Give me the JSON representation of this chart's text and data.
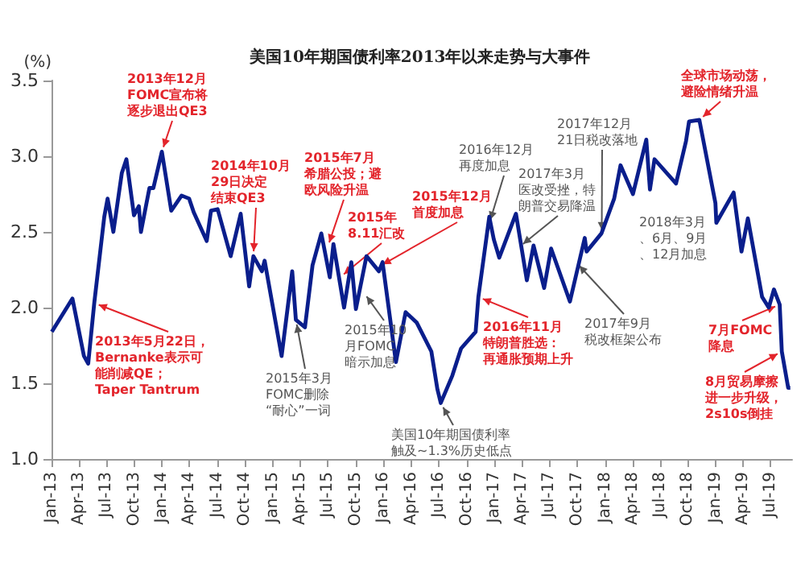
{
  "chart_data": {
    "type": "line",
    "title": "美国10年期国债利率2013年以来走势与大事件",
    "ylabel": "(%)",
    "x": [
      "2013-01-02",
      "2013-03-11",
      "2013-04-18",
      "2013-05-02",
      "2013-05-22",
      "2013-06-24",
      "2013-07-05",
      "2013-07-24",
      "2013-08-21",
      "2013-09-05",
      "2013-09-30",
      "2013-10-16",
      "2013-10-23",
      "2013-11-20",
      "2013-12-03",
      "2013-12-31",
      "2014-01-31",
      "2014-03-06",
      "2014-03-31",
      "2014-04-15",
      "2014-05-28",
      "2014-06-11",
      "2014-07-03",
      "2014-08-15",
      "2014-09-17",
      "2014-10-15",
      "2014-10-29",
      "2014-11-26",
      "2014-12-05",
      "2015-01-30",
      "2015-03-06",
      "2015-03-18",
      "2015-04-17",
      "2015-05-12",
      "2015-06-10",
      "2015-07-08",
      "2015-07-20",
      "2015-08-24",
      "2015-09-17",
      "2015-10-02",
      "2015-11-06",
      "2015-12-17",
      "2015-12-29",
      "2016-02-11",
      "2016-03-14",
      "2016-04-20",
      "2016-06-07",
      "2016-06-27",
      "2016-07-08",
      "2016-08-15",
      "2016-09-13",
      "2016-10-31",
      "2016-11-09",
      "2016-12-15",
      "2016-12-30",
      "2017-01-17",
      "2017-03-13",
      "2017-04-18",
      "2017-05-10",
      "2017-06-14",
      "2017-07-07",
      "2017-09-07",
      "2017-10-26",
      "2017-11-01",
      "2017-12-20",
      "2018-01-31",
      "2018-02-21",
      "2018-04-03",
      "2018-05-17",
      "2018-05-29",
      "2018-06-13",
      "2018-08-23",
      "2018-09-25",
      "2018-10-05",
      "2018-11-08",
      "2018-12-31",
      "2019-01-03",
      "2019-03-01",
      "2019-03-27",
      "2019-04-17",
      "2019-06-03",
      "2019-06-25",
      "2019-07-12",
      "2019-07-31",
      "2019-08-07",
      "2019-08-28",
      "2019-09-04"
    ],
    "series": [
      {
        "color": "#0a1e8c",
        "values": [
          1.84,
          2.06,
          1.68,
          1.63,
          2.03,
          2.6,
          2.72,
          2.5,
          2.89,
          2.98,
          2.61,
          2.67,
          2.5,
          2.79,
          2.79,
          3.03,
          2.64,
          2.74,
          2.72,
          2.63,
          2.44,
          2.64,
          2.65,
          2.34,
          2.62,
          2.14,
          2.34,
          2.24,
          2.31,
          1.68,
          2.24,
          1.92,
          1.87,
          2.28,
          2.49,
          2.2,
          2.42,
          2.0,
          2.3,
          1.99,
          2.34,
          2.24,
          2.3,
          1.64,
          1.97,
          1.9,
          1.71,
          1.46,
          1.37,
          1.55,
          1.73,
          1.84,
          2.07,
          2.6,
          2.45,
          2.33,
          2.62,
          2.18,
          2.41,
          2.13,
          2.39,
          2.04,
          2.46,
          2.37,
          2.49,
          2.72,
          2.94,
          2.75,
          3.11,
          2.78,
          2.98,
          2.82,
          3.1,
          3.23,
          3.24,
          2.69,
          2.56,
          2.76,
          2.37,
          2.59,
          2.07,
          2.0,
          2.12,
          2.02,
          1.71,
          1.47,
          1.47
        ]
      }
    ],
    "xlim": [
      "2013-01-01",
      "2019-09-10"
    ],
    "xticks": [
      {
        "value": "2013-01",
        "label": "Jan-13"
      },
      {
        "value": "2013-04",
        "label": "Apr-13"
      },
      {
        "value": "2013-07",
        "label": "Jul-13"
      },
      {
        "value": "2013-10",
        "label": "Oct-13"
      },
      {
        "value": "2014-01",
        "label": "Jan-14"
      },
      {
        "value": "2014-04",
        "label": "Apr-14"
      },
      {
        "value": "2014-07",
        "label": "Jul-14"
      },
      {
        "value": "2014-10",
        "label": "Oct-14"
      },
      {
        "value": "2015-01",
        "label": "Jan-15"
      },
      {
        "value": "2015-04",
        "label": "Apr-15"
      },
      {
        "value": "2015-07",
        "label": "Jul-15"
      },
      {
        "value": "2015-10",
        "label": "Oct-15"
      },
      {
        "value": "2016-01",
        "label": "Jan-16"
      },
      {
        "value": "2016-04",
        "label": "Apr-16"
      },
      {
        "value": "2016-07",
        "label": "Jul-16"
      },
      {
        "value": "2016-10",
        "label": "Oct-16"
      },
      {
        "value": "2017-01",
        "label": "Jan-17"
      },
      {
        "value": "2017-04",
        "label": "Apr-17"
      },
      {
        "value": "2017-07",
        "label": "Jul-17"
      },
      {
        "value": "2017-10",
        "label": "Oct-17"
      },
      {
        "value": "2018-01",
        "label": "Jan-18"
      },
      {
        "value": "2018-04",
        "label": "Apr-18"
      },
      {
        "value": "2018-07",
        "label": "Jul-18"
      },
      {
        "value": "2018-10",
        "label": "Oct-18"
      },
      {
        "value": "2019-01",
        "label": "Jan-19"
      },
      {
        "value": "2019-04",
        "label": "Apr-19"
      },
      {
        "value": "2019-07",
        "label": "Jul-19"
      }
    ],
    "ylim": [
      1.0,
      3.5
    ],
    "yticks": [
      {
        "value": 1.0,
        "label": "1.0"
      },
      {
        "value": 1.5,
        "label": "1.5"
      },
      {
        "value": 2.0,
        "label": "2.0"
      },
      {
        "value": 2.5,
        "label": "2.5"
      },
      {
        "value": 3.0,
        "label": "3.0"
      },
      {
        "value": 3.5,
        "label": "3.5"
      }
    ],
    "grid": false,
    "marker": "none",
    "line_style": "solid",
    "annotations": [
      {
        "text": "2013年12月FOMC宣布将逐步退出QE3",
        "x": "2013-12-31",
        "y": 3.03
      },
      {
        "text": "2014年10月29日决定结束QE3",
        "x": "2014-10-29",
        "y": 2.34
      },
      {
        "text": "2015年7月希腊公投；避欧风险升温",
        "x": "2015-07-01",
        "y": 2.4
      },
      {
        "text": "2015年8.11汇改",
        "x": "2015-08-11",
        "y": 2.2
      },
      {
        "text": "2015年12月首度加息",
        "x": "2015-12-16",
        "y": 2.27
      },
      {
        "text": "2016年12月再度加息",
        "x": "2016-12-14",
        "y": 2.55
      },
      {
        "text": "2017年3月医改受挫，特朗普交易降温",
        "x": "2017-03-24",
        "y": 2.4
      },
      {
        "text": "2017年12月21日税改落地",
        "x": "2017-12-21",
        "y": 2.48
      },
      {
        "text": "全球市场动荡，避险情绪升温",
        "x": "2018-11-08",
        "y": 3.24
      },
      "2018年3月、6月、9月、12月加息",
      {
        "text": "2013年5月22日，Bernanke表示可能削减QE；Taper Tantrum",
        "x": "2013-05-22",
        "y": 2.03
      },
      {
        "text": "2015年3月FOMC删除“耐心”一词",
        "x": "2015-03-18",
        "y": 1.92
      },
      {
        "text": "2015年10月FOMC暗示加息",
        "x": "2015-10-28",
        "y": 2.1
      },
      {
        "text": "美国10年期国债利率触及~1.3%历史低点",
        "x": "2016-07-08",
        "y": 1.37
      },
      {
        "text": "2016年11月特朗普胜选：再通胀预期上升",
        "x": "2016-11-09",
        "y": 2.07
      },
      {
        "text": "2017年9月税改框架公布",
        "x": "2017-09-27",
        "y": 2.3
      },
      {
        "text": "7月FOMC降息",
        "x": "2019-07-31",
        "y": 2.02
      },
      {
        "text": "8月贸易摩擦进一步升级，2s10s倒挂",
        "x": "2019-08-07",
        "y": 1.71
      }
    ]
  }
}
